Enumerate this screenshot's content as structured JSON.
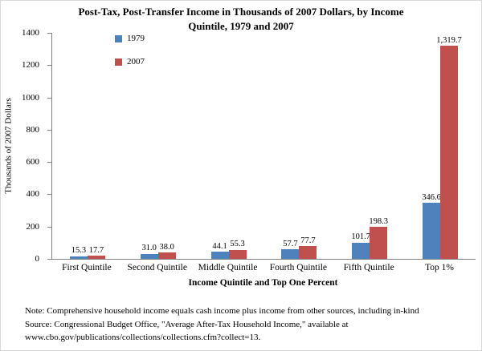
{
  "chart_data": {
    "type": "bar",
    "title": "Post-Tax, Post-Transfer Income in Thousands of 2007 Dollars, by Income Quintile, 1979 and 2007",
    "title_lines": [
      "Post-Tax, Post-Transfer Income in Thousands of 2007 Dollars, by Income",
      "Quintile, 1979 and 2007"
    ],
    "categories": [
      "First Quintile",
      "Second Quintile",
      "Middle Quintile",
      "Fourth Quintile",
      "Fifth Quintile",
      "Top 1%"
    ],
    "series": [
      {
        "name": "1979",
        "color": "#4F81BD",
        "values": [
          15.3,
          31.0,
          44.1,
          57.7,
          101.7,
          346.6
        ],
        "labels": [
          "15.3",
          "31.0",
          "44.1",
          "57.7",
          "101.7",
          "346.6"
        ]
      },
      {
        "name": "2007",
        "color": "#C0504D",
        "values": [
          17.7,
          38.0,
          55.3,
          77.7,
          198.3,
          1319.7
        ],
        "labels": [
          "17.7",
          "38.0",
          "55.3",
          "77.7",
          "198.3",
          "1,319.7"
        ]
      }
    ],
    "xlabel": "Income Quintile and Top One Percent",
    "ylabel": "Thousands of 2007 Dollars",
    "ylim": [
      0,
      1400
    ],
    "yticks": [
      0,
      200,
      400,
      600,
      800,
      1000,
      1200,
      1400
    ],
    "grid": false,
    "legend_position": "top-left-inside"
  },
  "notes": {
    "line1": "Note: Comprehensive household income equals cash income plus income from other sources, including in-kind",
    "line2": "Source: Congressional Budget Office, \"Average After-Tax Household Income,\" available at",
    "line3": "www.cbo.gov/publications/collections/collections.cfm?collect=13."
  }
}
